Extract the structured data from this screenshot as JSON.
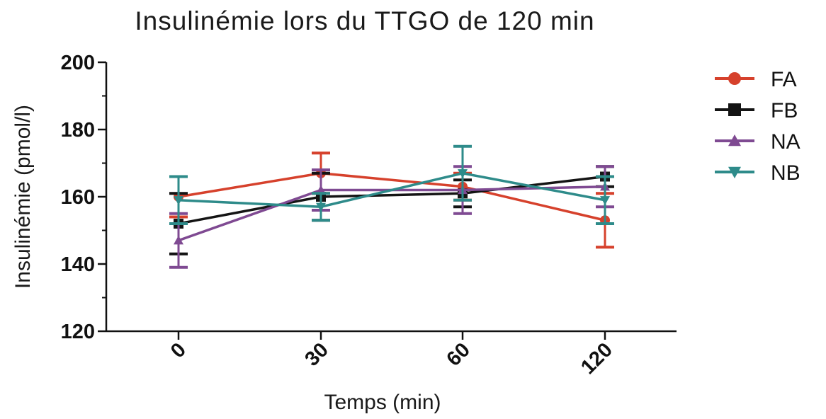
{
  "chart_data": {
    "type": "line",
    "title": "Insulinémie lors du TTGO de 120 min",
    "xlabel": "Temps (min)",
    "ylabel": "Insulinémie (pmol/l)",
    "categories": [
      "0",
      "30",
      "60",
      "120"
    ],
    "ylim": [
      120,
      200
    ],
    "yticks": [
      120,
      140,
      160,
      180,
      200
    ],
    "grid": false,
    "legend_position": "right",
    "error_bars": true,
    "series": [
      {
        "name": "FA",
        "color": "#d6412c",
        "marker": "circle",
        "values": [
          160,
          167,
          163,
          153
        ],
        "errors": [
          6,
          6,
          4,
          8
        ]
      },
      {
        "name": "FB",
        "color": "#141414",
        "marker": "square",
        "values": [
          152,
          160,
          161,
          166
        ],
        "errors": [
          9,
          7,
          4,
          3
        ]
      },
      {
        "name": "NA",
        "color": "#7f4a92",
        "marker": "triangle-up",
        "values": [
          147,
          162,
          162,
          163
        ],
        "errors": [
          8,
          6,
          7,
          6
        ]
      },
      {
        "name": "NB",
        "color": "#2e8b8a",
        "marker": "triangle-down",
        "values": [
          159,
          157,
          167,
          159
        ],
        "errors": [
          7,
          4,
          8,
          7
        ]
      }
    ]
  }
}
